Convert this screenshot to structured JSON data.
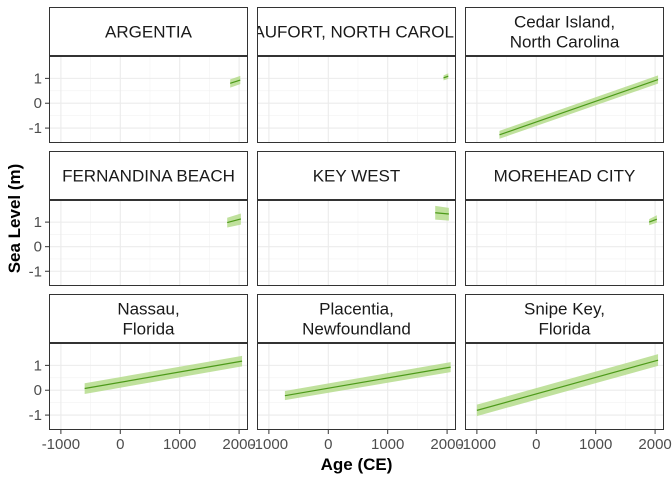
{
  "chart_data": {
    "type": "line",
    "layout": "facet grid 3x3, shared axes",
    "xlabel": "Age (CE)",
    "ylabel": "Sea Level (m)",
    "xlim": [
      -1200,
      2150
    ],
    "ylim": [
      -1.6,
      1.9
    ],
    "x_ticks": [
      -1000,
      0,
      1000,
      2000
    ],
    "x_tick_labels": [
      "-1000",
      "0",
      "1000",
      "2000"
    ],
    "y_ticks": [
      -1,
      0,
      1
    ],
    "y_tick_labels": [
      "-1",
      "0",
      "1"
    ],
    "grid": true,
    "line_color": "#4d9a1a",
    "band_color": "#b5dc8c",
    "panels": [
      {
        "title": [
          "ARGENTIA"
        ],
        "x": [
          1850,
          2020
        ],
        "mean": [
          0.8,
          0.93
        ],
        "lower": [
          0.63,
          0.77
        ],
        "upper": [
          0.96,
          1.1
        ]
      },
      {
        "title": [
          "BEAUFORT, NORTH CAROLINA"
        ],
        "x": [
          1940,
          2020
        ],
        "mean": [
          1.02,
          1.09
        ],
        "lower": [
          0.92,
          0.98
        ],
        "upper": [
          1.12,
          1.2
        ]
      },
      {
        "title": [
          "Cedar Island,",
          "North Carolina"
        ],
        "x": [
          -620,
          2050
        ],
        "mean": [
          -1.27,
          0.95
        ],
        "lower": [
          -1.43,
          0.79
        ],
        "upper": [
          -1.11,
          1.12
        ]
      },
      {
        "title": [
          "FERNANDINA BEACH"
        ],
        "x": [
          1800,
          2030
        ],
        "mean": [
          0.98,
          1.13
        ],
        "lower": [
          0.78,
          0.9
        ],
        "upper": [
          1.18,
          1.35
        ]
      },
      {
        "title": [
          "KEY WEST"
        ],
        "x": [
          1800,
          2030
        ],
        "mean": [
          1.38,
          1.33
        ],
        "lower": [
          1.1,
          1.06
        ],
        "upper": [
          1.66,
          1.58
        ]
      },
      {
        "title": [
          "MOREHEAD CITY"
        ],
        "x": [
          1900,
          2030
        ],
        "mean": [
          1.0,
          1.12
        ],
        "lower": [
          0.87,
          0.98
        ],
        "upper": [
          1.12,
          1.28
        ]
      },
      {
        "title": [
          "Nassau,",
          "Florida"
        ],
        "x": [
          -600,
          2050
        ],
        "mean": [
          0.07,
          1.17
        ],
        "lower": [
          -0.15,
          0.96
        ],
        "upper": [
          0.28,
          1.38
        ]
      },
      {
        "title": [
          "Placentia,",
          "Newfoundland"
        ],
        "x": [
          -730,
          2060
        ],
        "mean": [
          -0.22,
          0.93
        ],
        "lower": [
          -0.4,
          0.73
        ],
        "upper": [
          -0.03,
          1.13
        ]
      },
      {
        "title": [
          "Snipe Key,",
          "Florida"
        ],
        "x": [
          -1000,
          2050
        ],
        "mean": [
          -0.81,
          1.21
        ],
        "lower": [
          -1.04,
          0.98
        ],
        "upper": [
          -0.58,
          1.45
        ]
      }
    ]
  }
}
